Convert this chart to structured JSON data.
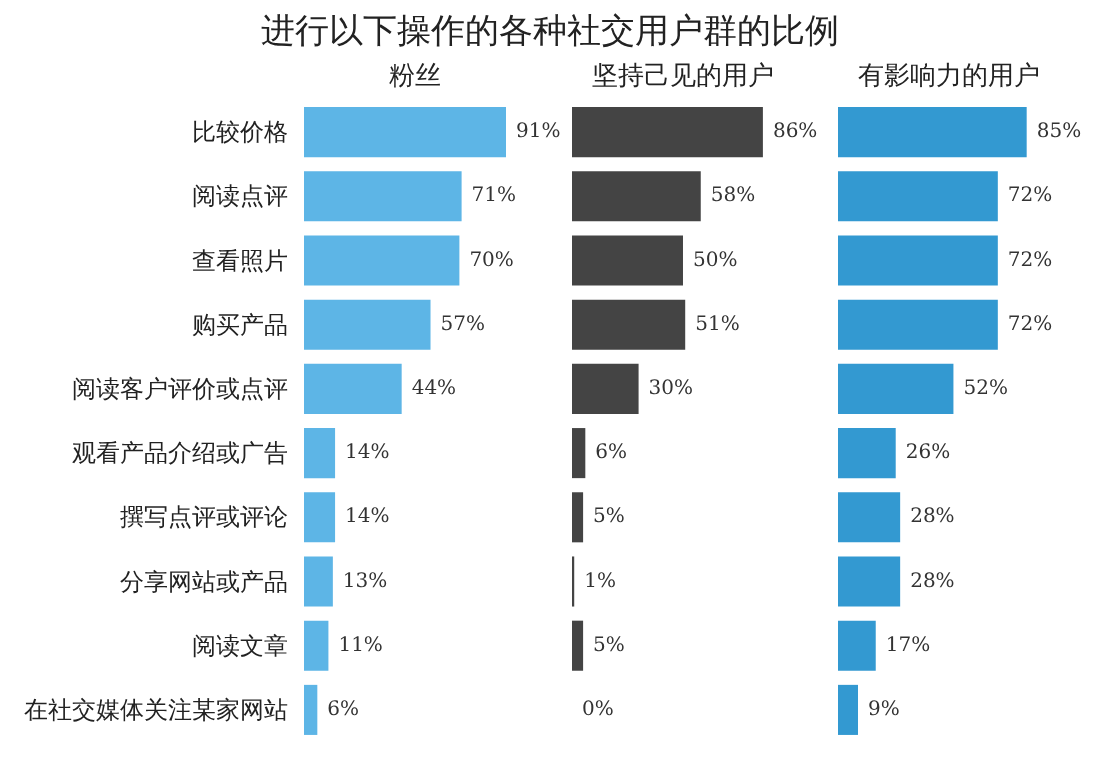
{
  "chart_data": [
    {
      "type": "bar",
      "orientation": "horizontal",
      "title": "进行以下操作的各种社交用户群的比例",
      "subtitle": "粉丝",
      "tick_labels": "y",
      "categories": [
        "比较价格",
        "阅读点评",
        "查看照片",
        "购买产品",
        "阅读客户评价或点评",
        "观看产品介绍或广告",
        "撰写点评或评论",
        "分享网站或产品",
        "阅读文章",
        "在社交媒体关注某家网站"
      ],
      "series": [
        {
          "color": "#5db5e6",
          "values": [
            91,
            71,
            70,
            57,
            44,
            14,
            14,
            13,
            11,
            6
          ],
          "value_labels": [
            "91%",
            "71%",
            "70%",
            "57%",
            "44%",
            "14%",
            "14%",
            "13%",
            "11%",
            "6%"
          ]
        }
      ]
    },
    {
      "type": "bar",
      "orientation": "horizontal",
      "subtitle": "坚持己见的用户",
      "tick_labels": false,
      "categories": [
        null,
        null,
        null,
        null,
        null,
        null,
        null,
        null,
        null,
        null
      ],
      "series": [
        {
          "color": "#444444",
          "values": [
            86,
            58,
            50,
            51,
            30,
            6,
            5,
            1,
            5,
            0
          ],
          "value_labels": [
            "86%",
            "58%",
            "50%",
            "51%",
            "30%",
            "6%",
            "5%",
            "1%",
            "5%",
            "0%"
          ]
        }
      ]
    },
    {
      "type": "bar",
      "orientation": "horizontal",
      "subtitle": "有影响力的用户",
      "tick_labels": false,
      "categories": [
        null,
        null,
        null,
        null,
        null,
        null,
        null,
        null,
        null,
        null
      ],
      "series": [
        {
          "color": "#3399d1",
          "values": [
            85,
            72,
            72,
            72,
            52,
            26,
            28,
            28,
            17,
            9
          ],
          "value_labels": [
            "85%",
            "72%",
            "72%",
            "72%",
            "52%",
            "26%",
            "28%",
            "28%",
            "17%",
            "9%"
          ]
        }
      ]
    }
  ]
}
